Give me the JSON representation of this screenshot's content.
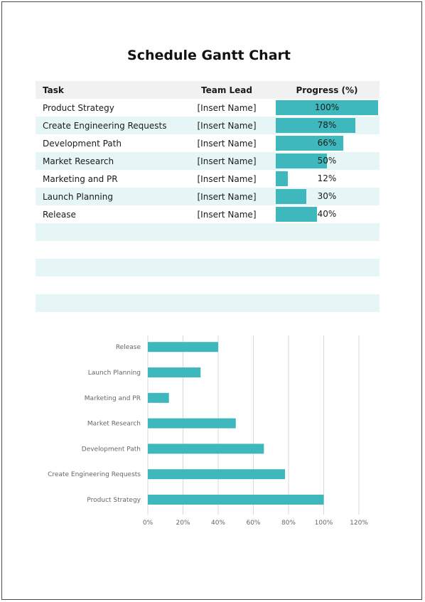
{
  "title": "Schedule Gantt Chart",
  "table": {
    "headers": [
      "Task",
      "Team Lead",
      "Progress (%)"
    ],
    "rows": [
      {
        "task": "Product Strategy",
        "lead": "[Insert Name]",
        "progress": 100,
        "label": "100%"
      },
      {
        "task": "Create Engineering Requests",
        "lead": "[Insert Name]",
        "progress": 78,
        "label": "78%"
      },
      {
        "task": "Development Path",
        "lead": "[Insert Name]",
        "progress": 66,
        "label": "66%"
      },
      {
        "task": "Market Research",
        "lead": "[Insert Name]",
        "progress": 50,
        "label": "50%"
      },
      {
        "task": "Marketing and PR",
        "lead": "[Insert Name]",
        "progress": 12,
        "label": "12%"
      },
      {
        "task": "Launch Planning",
        "lead": "[Insert Name]",
        "progress": 30,
        "label": "30%"
      },
      {
        "task": "Release",
        "lead": "[Insert Name]",
        "progress": 40,
        "label": "40%"
      }
    ],
    "empty_rows": 5
  },
  "colors": {
    "accent": "#3fb8bd",
    "band": "#e6f6f6",
    "header": "#f1f1f1"
  },
  "chart_data": {
    "type": "bar",
    "orientation": "horizontal",
    "categories": [
      "Product Strategy",
      "Create Engineering Requests",
      "Development Path",
      "Market Research",
      "Marketing and PR",
      "Launch Planning",
      "Release"
    ],
    "values": [
      100,
      78,
      66,
      50,
      12,
      30,
      40
    ],
    "xlim": [
      0,
      120
    ],
    "xticks": [
      "0%",
      "20%",
      "40%",
      "60%",
      "80%",
      "100%",
      "120%"
    ],
    "grid": true,
    "legend": "none"
  }
}
